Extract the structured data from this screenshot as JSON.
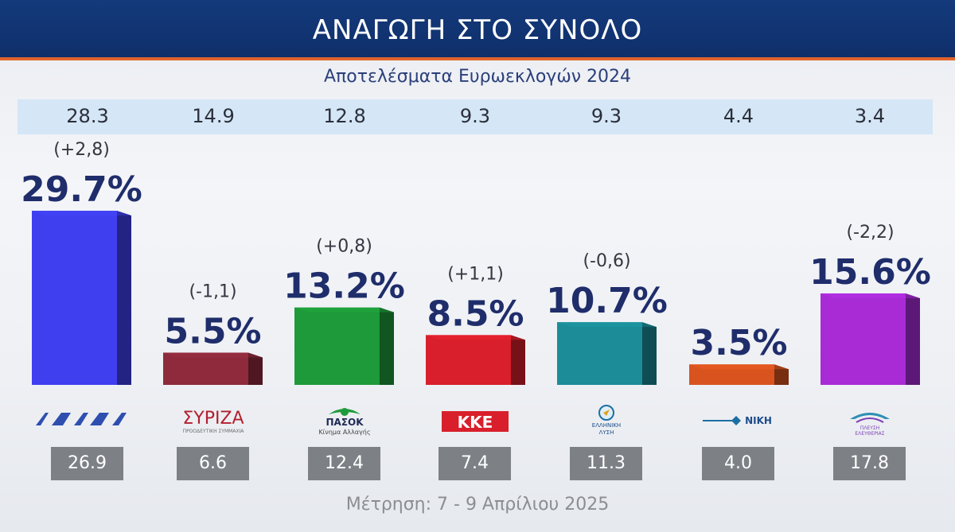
{
  "header": {
    "title": "ΑΝΑΓΩΓΗ ΣΤΟ ΣΥΝΟΛΟ",
    "subtitle": "Αποτελέσματα Ευρωεκλογών 2024",
    "footer": "Μέτρηση: 7 - 9 Απρίλιου 2025"
  },
  "colors": {
    "header_bg": "#123677",
    "header_stripe": "#e2622a",
    "value_label": "#1f2d6b"
  },
  "chart_data": {
    "type": "bar",
    "categories": [
      "ΝΔ",
      "ΣΥΡΙΖΑ",
      "ΠΑΣΟΚ",
      "ΚΚΕ",
      "ΕΛΛΗΝΙΚΗ ΛΥΣΗ",
      "ΝΙΚΗ",
      "ΠΛΕΥΣΗ ΕΛΕΥΘΕΡΙΑΣ"
    ],
    "series": [
      {
        "values": [
          29.7,
          5.5,
          13.2,
          8.5,
          10.7,
          3.5,
          15.6
        ],
        "labels": [
          "29.7%",
          "5.5%",
          "13.2%",
          "8.5%",
          "10.7%",
          "3.5%",
          "15.6%"
        ]
      }
    ],
    "changes": [
      "(+2,8)",
      "(-1,1)",
      "(+0,8)",
      "(+1,1)",
      "(-0,6)",
      "",
      "(-2,2)"
    ],
    "euro_2024": [
      "28.3",
      "14.9",
      "12.8",
      "9.3",
      "9.3",
      "4.4",
      "3.4"
    ],
    "previous": [
      "26.9",
      "6.6",
      "12.4",
      "7.4",
      "11.3",
      "4.0",
      "17.8"
    ],
    "bar_colors": [
      "#3f3ff0",
      "#8e2a3c",
      "#1e9a3a",
      "#d81f2b",
      "#1c8c99",
      "#d9531f",
      "#a82bd6"
    ],
    "ylim": [
      0,
      30
    ]
  },
  "logos": [
    {
      "icon": "nd-logo",
      "text": "ΝΔ"
    },
    {
      "icon": "syriza-logo",
      "text": "ΣΥΡΙΖΑ",
      "sub": "ΠΡΟΟΔΕΥΤΙΚΗ ΣΥΜΜΑΧΙΑ"
    },
    {
      "icon": "pasok-logo",
      "text": "ΠΑΣΟΚ",
      "sub": "Κίνημα Αλλαγής"
    },
    {
      "icon": "kke-logo",
      "text": "ΚΚΕ"
    },
    {
      "icon": "elliniki-lysi-logo",
      "text": "ΕΛΛΗΝΙΚΗ",
      "sub": "ΛΥΣΗ"
    },
    {
      "icon": "niki-logo",
      "text": "ΝΙΚΗ"
    },
    {
      "icon": "plefsi-logo",
      "text": "ΠΛΕΥΣΗ",
      "sub": "ΕΛΕΥΘΕΡΙΑΣ"
    }
  ]
}
